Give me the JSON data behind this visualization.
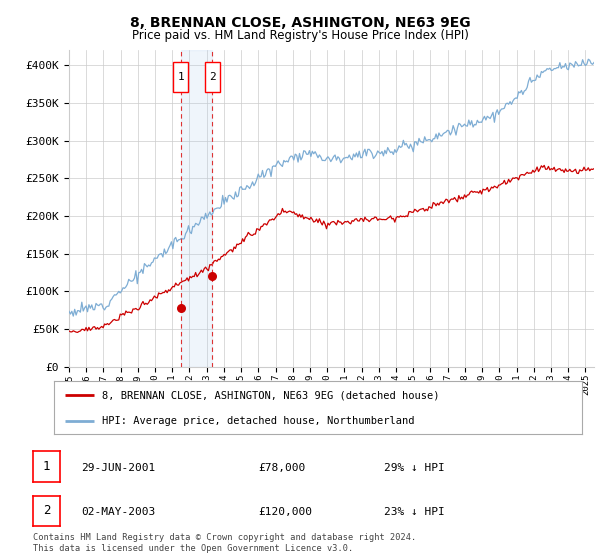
{
  "title": "8, BRENNAN CLOSE, ASHINGTON, NE63 9EG",
  "subtitle": "Price paid vs. HM Land Registry's House Price Index (HPI)",
  "ylabel_ticks": [
    "£0",
    "£50K",
    "£100K",
    "£150K",
    "£200K",
    "£250K",
    "£300K",
    "£350K",
    "£400K"
  ],
  "ytick_values": [
    0,
    50000,
    100000,
    150000,
    200000,
    250000,
    300000,
    350000,
    400000
  ],
  "ylim": [
    0,
    420000
  ],
  "xlim_start": 1995.0,
  "xlim_end": 2025.5,
  "hpi_color": "#7eadd4",
  "price_color": "#cc0000",
  "sale1_date": 2001.49,
  "sale1_price": 78000,
  "sale2_date": 2003.33,
  "sale2_price": 120000,
  "legend_entries": [
    "8, BRENNAN CLOSE, ASHINGTON, NE63 9EG (detached house)",
    "HPI: Average price, detached house, Northumberland"
  ],
  "table_rows": [
    [
      "1",
      "29-JUN-2001",
      "£78,000",
      "29% ↓ HPI"
    ],
    [
      "2",
      "02-MAY-2003",
      "£120,000",
      "23% ↓ HPI"
    ]
  ],
  "footer": "Contains HM Land Registry data © Crown copyright and database right 2024.\nThis data is licensed under the Open Government Licence v3.0.",
  "background_color": "#ffffff",
  "grid_color": "#cccccc"
}
